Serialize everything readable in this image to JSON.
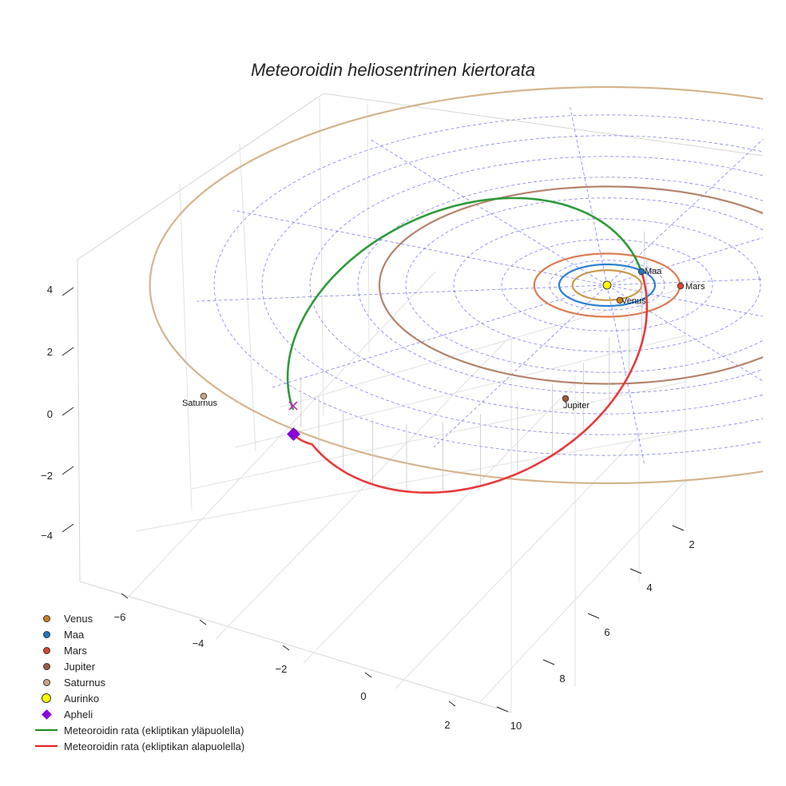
{
  "chart_data": {
    "type": "3d-line",
    "title": "Meteoroidin heliosentrinen kiertorata",
    "axes": {
      "x_ticks": [
        "−6",
        "−4",
        "−2",
        "0",
        "2"
      ],
      "y_ticks": [
        "2",
        "4",
        "6",
        "8",
        "10"
      ],
      "z_ticks": [
        "4",
        "2",
        "0",
        "−2",
        "−4"
      ],
      "xlim": [
        -7,
        3
      ],
      "ylim": [
        1,
        10.5
      ],
      "zlim": [
        -5,
        5
      ]
    },
    "sun": {
      "name": "Aurinko",
      "x": 0,
      "y": 0,
      "z": 0,
      "color": "#ffff00"
    },
    "planets": [
      {
        "name": "Venus",
        "label": "Venus",
        "radius": 0.72,
        "color": "#c9801f",
        "orbit_color": "#c79a4b"
      },
      {
        "name": "Maa",
        "label": "Maa",
        "radius": 1.0,
        "color": "#1f77c4",
        "orbit_color": "#2a7fd0"
      },
      {
        "name": "Mars",
        "label": "Mars",
        "radius": 1.52,
        "color": "#d9452a",
        "orbit_color": "#de7a50"
      },
      {
        "name": "Jupiter",
        "label": "Jupiter",
        "radius": 5.2,
        "color": "#9c5a3c",
        "orbit_color": "#b3836a"
      },
      {
        "name": "Saturnus",
        "label": "Saturnus",
        "radius": 9.54,
        "color": "#cfa27c",
        "orbit_color": "#d4b48e"
      }
    ],
    "meteoroid": {
      "perihelion_au": 1.0,
      "aphelion_au": 5.5,
      "aphelion_marker": "Apheli",
      "above_color": "#2f9a3a",
      "below_color": "#e8393a"
    },
    "legend": [
      {
        "kind": "dot",
        "label": "Venus",
        "color": "#c9801f"
      },
      {
        "kind": "dot",
        "label": "Maa",
        "color": "#1f77c4"
      },
      {
        "kind": "dot",
        "label": "Mars",
        "color": "#d9452a"
      },
      {
        "kind": "dot",
        "label": "Jupiter",
        "color": "#9c5a3c"
      },
      {
        "kind": "dot",
        "label": "Saturnus",
        "color": "#cfa27c"
      },
      {
        "kind": "sun",
        "label": "Aurinko",
        "color": "#ffff00"
      },
      {
        "kind": "diamond",
        "label": "Apheli",
        "color": "#8b00e0"
      },
      {
        "kind": "line",
        "label": "Meteoroidin rata (ekliptikan yläpuolella)",
        "color": "#1a8a1a"
      },
      {
        "kind": "line",
        "label": "Meteoroidin rata (ekliptikan alapuolella)",
        "color": "#e8191a"
      }
    ]
  }
}
